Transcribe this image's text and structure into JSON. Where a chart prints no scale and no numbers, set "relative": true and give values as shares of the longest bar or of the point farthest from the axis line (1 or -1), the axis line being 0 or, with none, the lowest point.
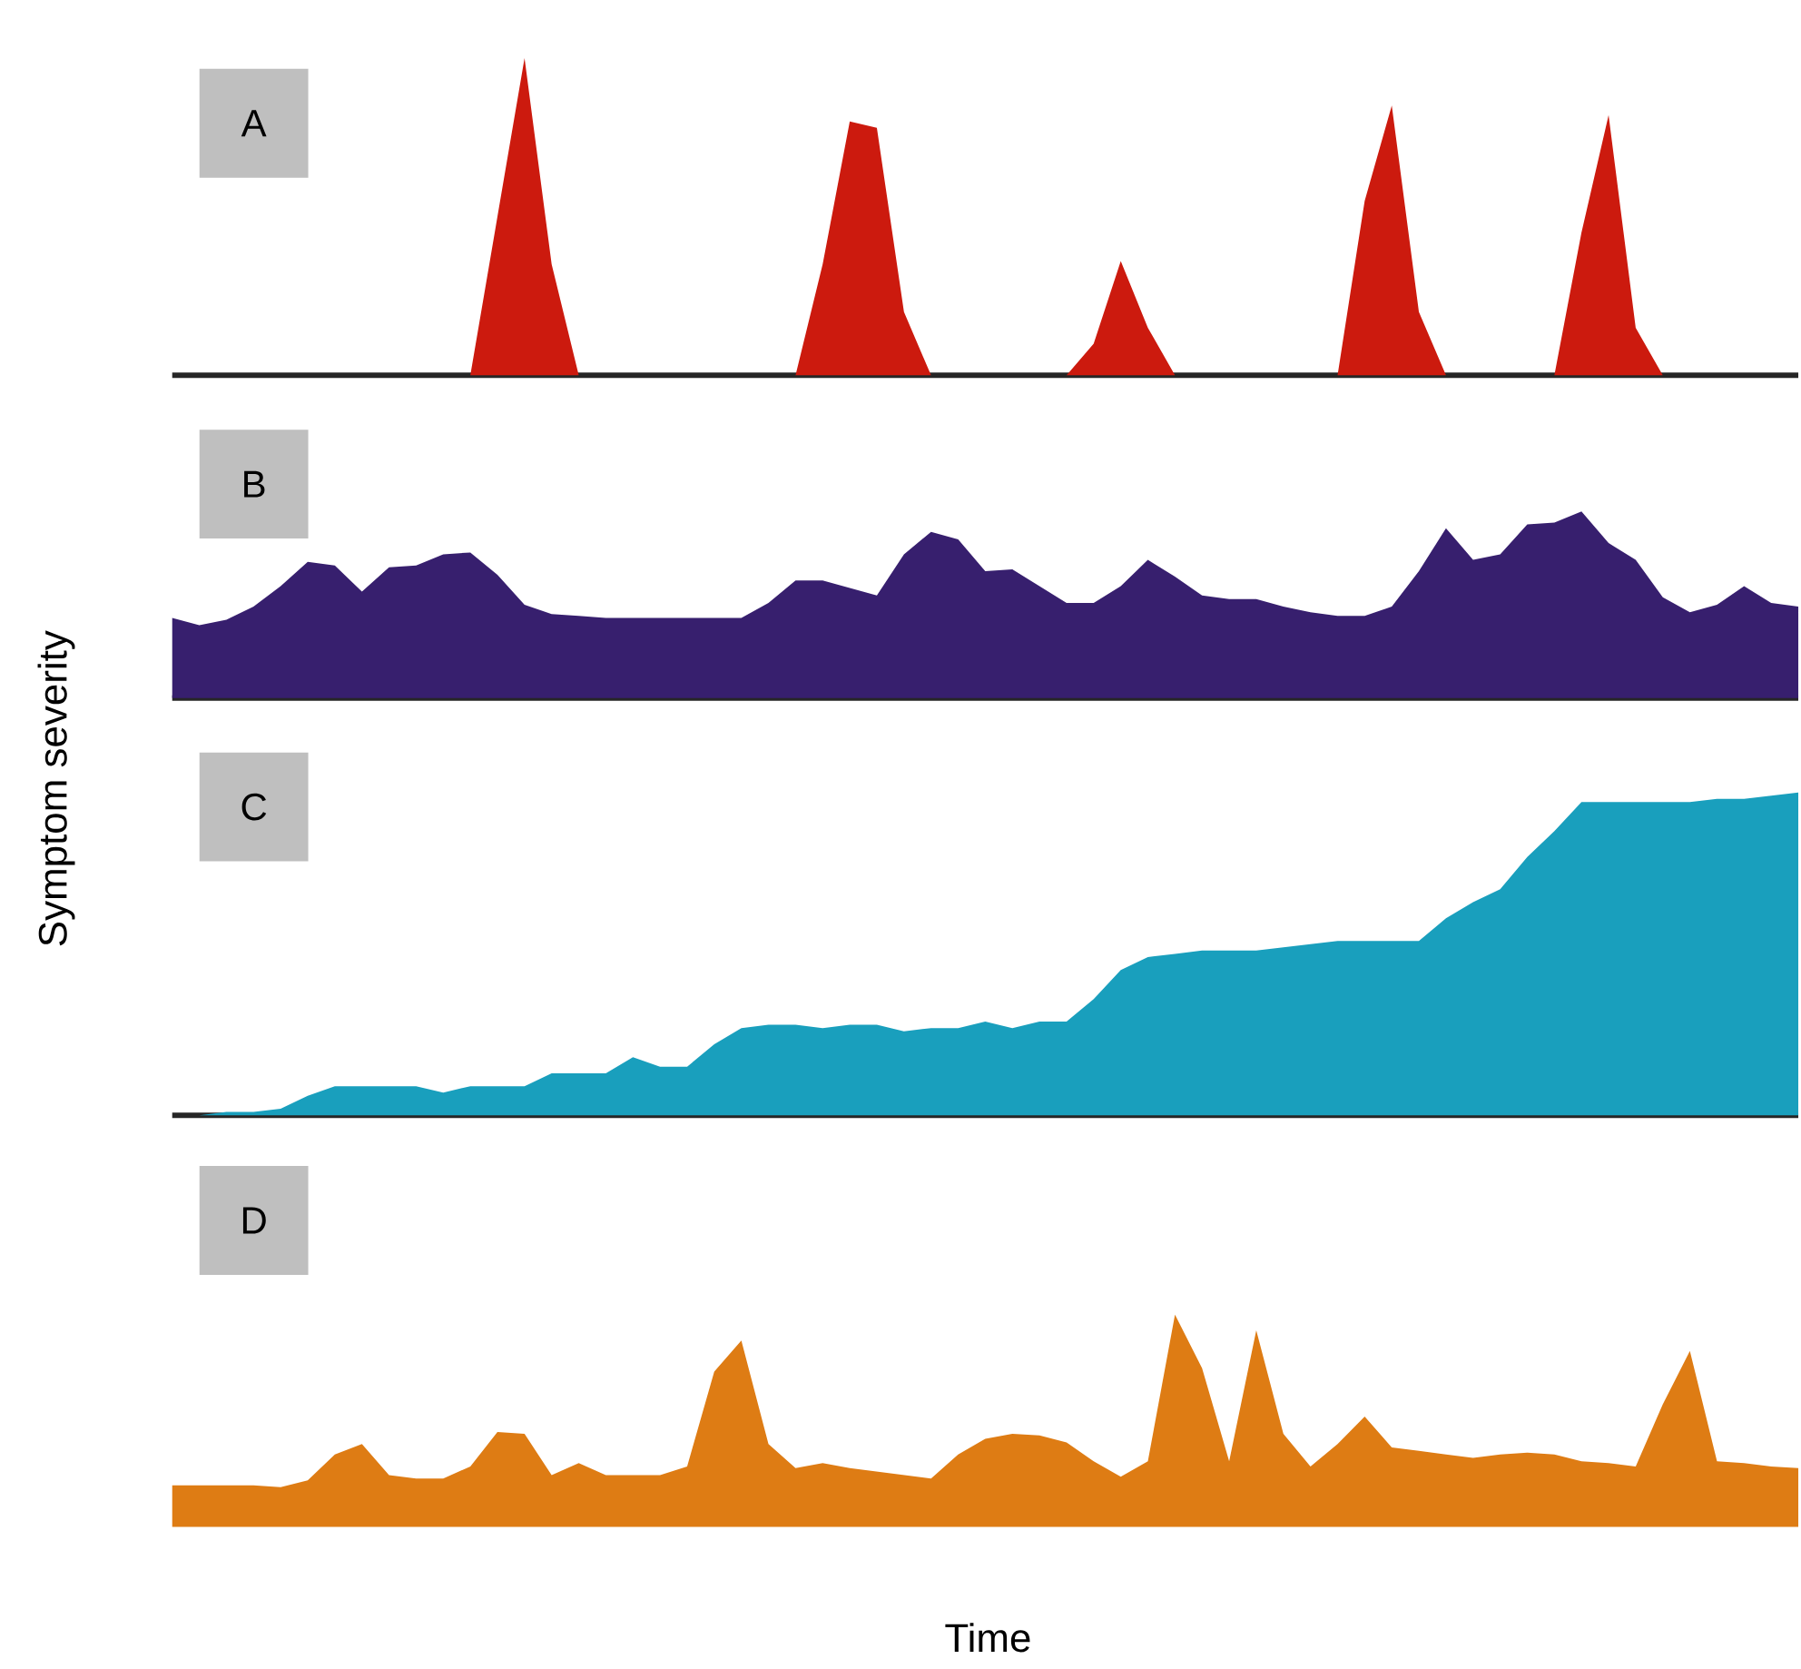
{
  "chart_data": [
    {
      "type": "area",
      "title": "A",
      "relative": true,
      "color": "#cc1a0e",
      "categories": [
        null,
        null,
        null,
        null,
        null,
        null,
        null,
        null,
        null,
        null,
        null,
        null,
        null,
        null,
        null,
        null,
        null,
        null,
        null,
        null,
        null,
        null,
        null,
        null,
        null,
        null,
        null,
        null,
        null,
        null,
        null,
        null,
        null,
        null,
        null,
        null,
        null,
        null,
        null,
        null,
        null,
        null,
        null,
        null,
        null,
        null,
        null,
        null,
        null,
        null,
        null,
        null,
        null,
        null,
        null,
        null,
        null,
        null,
        null,
        null,
        null
      ],
      "values": [
        0,
        0,
        0,
        0,
        0,
        0,
        0,
        0,
        0,
        0,
        0,
        0,
        0.5,
        1,
        0.35,
        0,
        0,
        0,
        0,
        0,
        0,
        0,
        0,
        0,
        0.35,
        0.8,
        0.78,
        0.2,
        0,
        0,
        0,
        0,
        0,
        0,
        0.1,
        0.36,
        0.15,
        0,
        0,
        0,
        0,
        0,
        0,
        0,
        0.55,
        0.85,
        0.2,
        0,
        0,
        0,
        0,
        0,
        0.45,
        0.82,
        0.15,
        0,
        0,
        0,
        0,
        0,
        0
      ]
    },
    {
      "type": "area",
      "title": "B",
      "relative": true,
      "color": "#371f6e",
      "categories": [
        null,
        null,
        null,
        null,
        null,
        null,
        null,
        null,
        null,
        null,
        null,
        null,
        null,
        null,
        null,
        null,
        null,
        null,
        null,
        null,
        null,
        null,
        null,
        null,
        null,
        null,
        null,
        null,
        null,
        null,
        null,
        null,
        null,
        null,
        null,
        null,
        null,
        null,
        null,
        null,
        null,
        null,
        null,
        null,
        null,
        null,
        null,
        null,
        null,
        null,
        null,
        null,
        null,
        null,
        null,
        null,
        null,
        null,
        null,
        null,
        null
      ],
      "values": [
        0.43,
        0.39,
        0.42,
        0.49,
        0.6,
        0.73,
        0.71,
        0.57,
        0.7,
        0.71,
        0.77,
        0.78,
        0.66,
        0.5,
        0.45,
        0.44,
        0.43,
        0.43,
        0.43,
        0.43,
        0.43,
        0.43,
        0.51,
        0.63,
        0.63,
        0.59,
        0.55,
        0.77,
        0.89,
        0.85,
        0.68,
        0.69,
        0.6,
        0.51,
        0.51,
        0.6,
        0.74,
        0.65,
        0.55,
        0.53,
        0.53,
        0.49,
        0.46,
        0.44,
        0.44,
        0.49,
        0.68,
        0.91,
        0.74,
        0.77,
        0.93,
        0.94,
        1,
        0.83,
        0.74,
        0.54,
        0.46,
        0.5,
        0.6,
        0.51,
        0.49
      ]
    },
    {
      "type": "area",
      "title": "C",
      "ylabel": "Symptom severity",
      "relative": true,
      "color": "#199fbd",
      "categories": [
        null,
        null,
        null,
        null,
        null,
        null,
        null,
        null,
        null,
        null,
        null,
        null,
        null,
        null,
        null,
        null,
        null,
        null,
        null,
        null,
        null,
        null,
        null,
        null,
        null,
        null,
        null,
        null,
        null,
        null,
        null,
        null,
        null,
        null,
        null,
        null,
        null,
        null,
        null,
        null,
        null,
        null,
        null,
        null,
        null,
        null,
        null,
        null,
        null,
        null,
        null,
        null,
        null,
        null,
        null,
        null,
        null,
        null,
        null,
        null,
        null
      ],
      "values": [
        0,
        0,
        0.01,
        0.01,
        0.02,
        0.06,
        0.09,
        0.09,
        0.09,
        0.09,
        0.07,
        0.09,
        0.09,
        0.09,
        0.13,
        0.13,
        0.13,
        0.18,
        0.15,
        0.15,
        0.22,
        0.27,
        0.28,
        0.28,
        0.27,
        0.28,
        0.28,
        0.26,
        0.27,
        0.27,
        0.29,
        0.27,
        0.29,
        0.29,
        0.36,
        0.45,
        0.49,
        0.5,
        0.51,
        0.51,
        0.51,
        0.52,
        0.53,
        0.54,
        0.54,
        0.54,
        0.54,
        0.61,
        0.66,
        0.7,
        0.8,
        0.88,
        0.97,
        0.97,
        0.97,
        0.97,
        0.97,
        0.98,
        0.98,
        0.99,
        1
      ]
    },
    {
      "type": "area",
      "title": "D",
      "xlabel": "Time",
      "relative": true,
      "color": "#de7c14",
      "categories": [
        null,
        null,
        null,
        null,
        null,
        null,
        null,
        null,
        null,
        null,
        null,
        null,
        null,
        null,
        null,
        null,
        null,
        null,
        null,
        null,
        null,
        null,
        null,
        null,
        null,
        null,
        null,
        null,
        null,
        null,
        null,
        null,
        null,
        null,
        null,
        null,
        null,
        null,
        null,
        null,
        null,
        null,
        null,
        null,
        null,
        null,
        null,
        null,
        null,
        null,
        null,
        null,
        null,
        null,
        null,
        null,
        null,
        null,
        null,
        null,
        null
      ],
      "values": [
        0.01,
        0.01,
        0.01,
        0.01,
        0,
        0.04,
        0.19,
        0.25,
        0.07,
        0.05,
        0.05,
        0.12,
        0.32,
        0.31,
        0.07,
        0.14,
        0.07,
        0.07,
        0.07,
        0.12,
        0.67,
        0.85,
        0.25,
        0.11,
        0.14,
        0.11,
        0.09,
        0.07,
        0.05,
        0.19,
        0.28,
        0.31,
        0.3,
        0.26,
        0.15,
        0.06,
        0.15,
        1,
        0.69,
        0.15,
        0.91,
        0.31,
        0.12,
        0.25,
        0.41,
        0.23,
        0.21,
        0.19,
        0.17,
        0.19,
        0.2,
        0.19,
        0.15,
        0.14,
        0.12,
        0.48,
        0.79,
        0.15,
        0.14,
        0.12,
        0.11
      ]
    }
  ]
}
